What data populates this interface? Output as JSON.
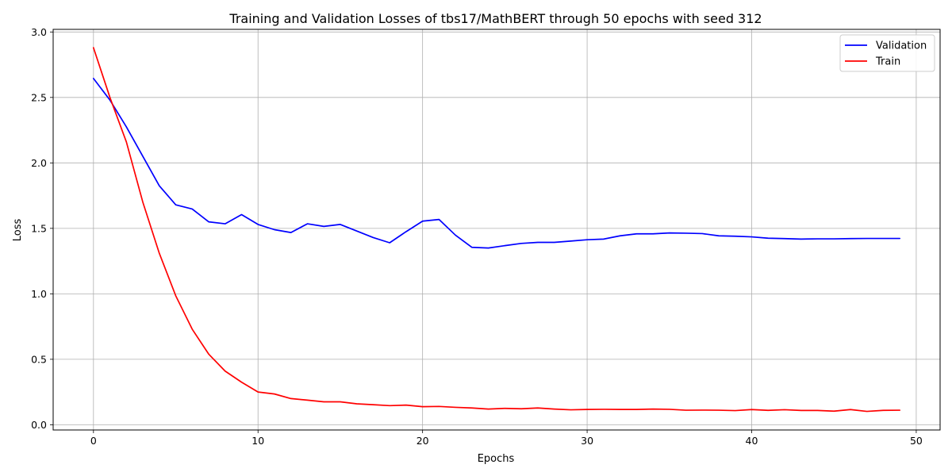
{
  "chart_data": {
    "type": "line",
    "title": "Training and Validation Losses of tbs17/MathBERT through 50 epochs with seed 312",
    "xlabel": "Epochs",
    "ylabel": "Loss",
    "xlim": [
      -2.45,
      51.45
    ],
    "ylim": [
      -0.04,
      3.02
    ],
    "xticks": [
      0,
      10,
      20,
      30,
      40,
      50
    ],
    "yticks": [
      0.0,
      0.5,
      1.0,
      1.5,
      2.0,
      2.5,
      3.0
    ],
    "xtick_labels": [
      "0",
      "10",
      "20",
      "30",
      "40",
      "50"
    ],
    "ytick_labels": [
      "0.0",
      "0.5",
      "1.0",
      "1.5",
      "2.0",
      "2.5",
      "3.0"
    ],
    "grid": true,
    "legend_position": "top-right",
    "x": [
      0,
      1,
      2,
      3,
      4,
      5,
      6,
      7,
      8,
      9,
      10,
      11,
      12,
      13,
      14,
      15,
      16,
      17,
      18,
      19,
      20,
      21,
      22,
      23,
      24,
      25,
      26,
      27,
      28,
      29,
      30,
      31,
      32,
      33,
      34,
      35,
      36,
      37,
      38,
      39,
      40,
      41,
      42,
      43,
      44,
      45,
      46,
      47,
      48,
      49
    ],
    "series": [
      {
        "name": "Validation",
        "color": "#0000ff",
        "values": [
          2.645,
          2.48,
          2.275,
          2.05,
          1.825,
          1.68,
          1.648,
          1.55,
          1.535,
          1.605,
          1.53,
          1.49,
          1.468,
          1.535,
          1.515,
          1.53,
          1.48,
          1.43,
          1.39,
          1.475,
          1.555,
          1.568,
          1.448,
          1.355,
          1.35,
          1.368,
          1.385,
          1.393,
          1.393,
          1.403,
          1.413,
          1.418,
          1.443,
          1.458,
          1.458,
          1.465,
          1.463,
          1.46,
          1.443,
          1.44,
          1.435,
          1.425,
          1.422,
          1.418,
          1.42,
          1.42,
          1.422,
          1.423,
          1.423,
          1.423
        ]
      },
      {
        "name": "Train",
        "color": "#ff0000",
        "values": [
          2.88,
          2.5,
          2.16,
          1.7,
          1.31,
          0.985,
          0.73,
          0.54,
          0.41,
          0.325,
          0.25,
          0.235,
          0.2,
          0.188,
          0.175,
          0.175,
          0.16,
          0.153,
          0.146,
          0.15,
          0.138,
          0.14,
          0.133,
          0.128,
          0.12,
          0.125,
          0.122,
          0.128,
          0.12,
          0.114,
          0.117,
          0.118,
          0.117,
          0.117,
          0.12,
          0.118,
          0.111,
          0.112,
          0.111,
          0.108,
          0.116,
          0.11,
          0.115,
          0.109,
          0.109,
          0.104,
          0.116,
          0.102,
          0.11,
          0.111
        ]
      }
    ]
  }
}
